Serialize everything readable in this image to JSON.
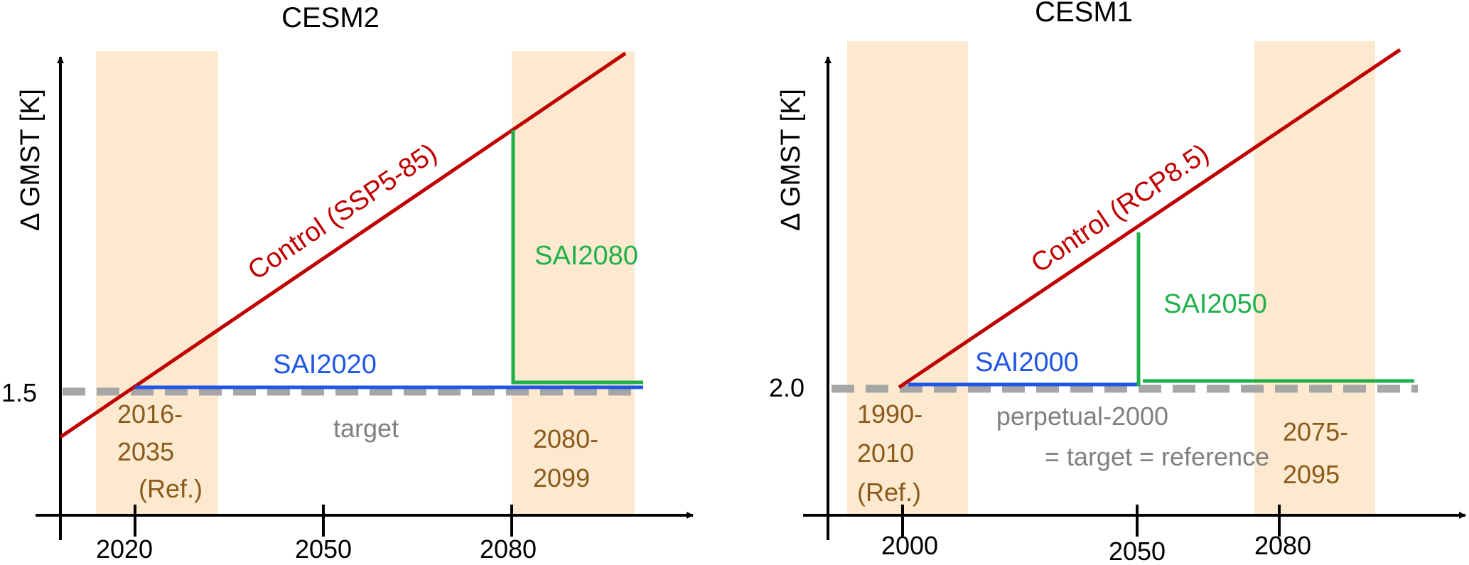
{
  "colors": {
    "control": "#C00000",
    "sai_blue": "#1F56E6",
    "sai_green": "#1FB04A",
    "target": "#A6A6A6",
    "period_text": "#8B5A1A",
    "band_fill": "#FCE9CF",
    "axis": "#000000"
  },
  "panels": [
    {
      "title": "CESM2",
      "y_axis_label": "Δ GMST [K]",
      "y_tick_label": "1.5",
      "x_ticks": [
        "2020",
        "2050",
        "2080"
      ],
      "control_label": "Control (SSP5-85)",
      "sai_blue_label": "SAI2020",
      "sai_green_label": "SAI2080",
      "target_label_lines": [
        "target"
      ],
      "period_left_lines": [
        "2016-",
        "2035",
        "(Ref.)"
      ],
      "period_right_lines": [
        "2080-",
        "2099"
      ]
    },
    {
      "title": "CESM1",
      "y_axis_label": "Δ GMST [K]",
      "y_tick_label": "2.0",
      "x_ticks": [
        "2000",
        "2050",
        "2080"
      ],
      "control_label": "Control (RCP8.5)",
      "sai_blue_label": "SAI2000",
      "sai_green_label": "SAI2050",
      "target_label_lines": [
        "perpetual-2000",
        "= target = reference"
      ],
      "period_left_lines": [
        "1990-",
        "2010",
        "(Ref.)"
      ],
      "period_right_lines": [
        "2075-",
        "2095"
      ]
    }
  ]
}
